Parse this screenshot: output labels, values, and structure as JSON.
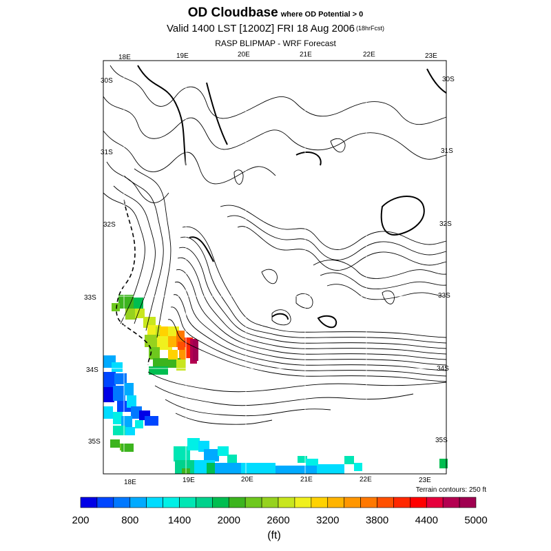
{
  "header": {
    "title": "OD Cloudbase",
    "title_suffix": "where OD Potential > 0",
    "valid_line": "Valid 1400 LST [1200Z] FRI 18 Aug 2006",
    "forecast_tag": "(18hrFcst)",
    "source": "RASP BLIPMAP - WRF Forecast"
  },
  "map": {
    "lon_labels_top": [
      "18E",
      "19E",
      "20E",
      "21E",
      "22E",
      "23E"
    ],
    "lon_labels_bottom": [
      "18E",
      "19E",
      "20E",
      "21E",
      "22E",
      "23E"
    ],
    "lat_labels_left": [
      "30S",
      "31S",
      "32S",
      "33S",
      "34S",
      "35S"
    ],
    "lat_labels_right": [
      "30S",
      "31S",
      "32S",
      "33S",
      "34S",
      "35S"
    ],
    "terrain_note": "Terrain contours: 250 ft",
    "background_color": "#ffffff",
    "contour_color": "#000000"
  },
  "colorbar": {
    "min": 200,
    "max": 5000,
    "step": 200,
    "tick_labels": [
      "200",
      "800",
      "1400",
      "2000",
      "2600",
      "3200",
      "3800",
      "4400",
      "5000"
    ],
    "unit_label": "(ft)",
    "colors": [
      "#0000e6",
      "#0046ff",
      "#0078ff",
      "#00aaff",
      "#00dcff",
      "#00f0e6",
      "#00e6b4",
      "#00d28c",
      "#00be50",
      "#3cb41e",
      "#6ec81e",
      "#96d21e",
      "#c8e61e",
      "#f0f01e",
      "#ffd200",
      "#ffb400",
      "#ff9600",
      "#ff7800",
      "#ff5000",
      "#ff2800",
      "#ff0000",
      "#e6003c",
      "#b40050",
      "#a00050"
    ]
  }
}
